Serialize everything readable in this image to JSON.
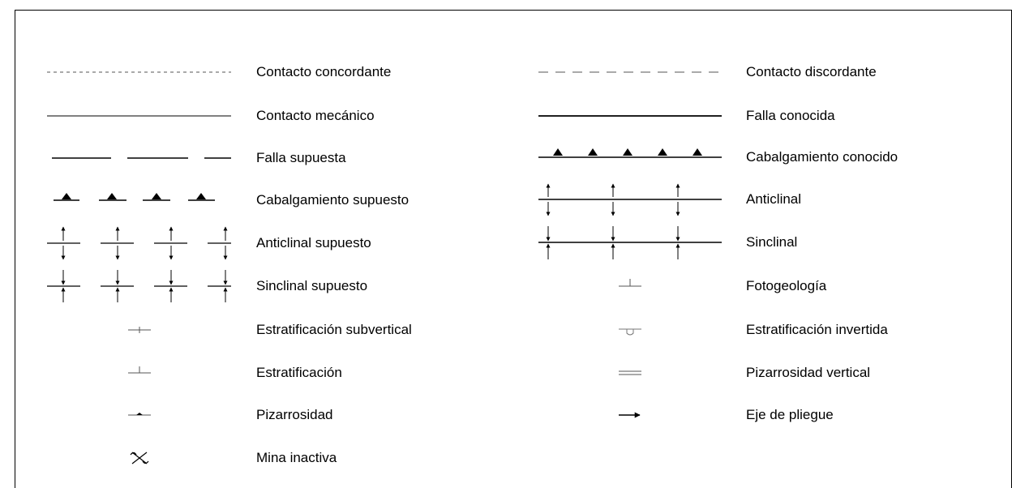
{
  "legend": {
    "left": [
      {
        "label": "Contacto concordante",
        "symbol": "dotted-line"
      },
      {
        "label": "Contacto mecánico",
        "symbol": "thin-line"
      },
      {
        "label": "Falla supuesta",
        "symbol": "dashed-thick-line"
      },
      {
        "label": "Cabalgamiento supuesto",
        "symbol": "dashed-triangle-line"
      },
      {
        "label": "Anticlinal supuesto",
        "symbol": "dashed-anticline"
      },
      {
        "label": "Sinclinal supuesto",
        "symbol": "dashed-syncline"
      },
      {
        "label": "Estratificación subvertical",
        "symbol": "subvertical-bedding"
      },
      {
        "label": "Estratificación",
        "symbol": "bedding"
      },
      {
        "label": "Pizarrosidad",
        "symbol": "cleavage"
      },
      {
        "label": "Mina inactiva",
        "symbol": "inactive-mine"
      }
    ],
    "right": [
      {
        "label": "Contacto discordante",
        "symbol": "long-dashed-line"
      },
      {
        "label": "Falla conocida",
        "symbol": "thick-line"
      },
      {
        "label": "Cabalgamiento conocido",
        "symbol": "triangle-line"
      },
      {
        "label": "Anticlinal",
        "symbol": "anticline"
      },
      {
        "label": "Sinclinal",
        "symbol": "syncline"
      },
      {
        "label": "Fotogeología",
        "symbol": "photogeology"
      },
      {
        "label": "Estratificación invertida",
        "symbol": "overturned-bedding"
      },
      {
        "label": "Pizarrosidad vertical",
        "symbol": "vertical-cleavage"
      },
      {
        "label": "Eje de pliegue",
        "symbol": "fold-axis-arrow"
      }
    ]
  }
}
